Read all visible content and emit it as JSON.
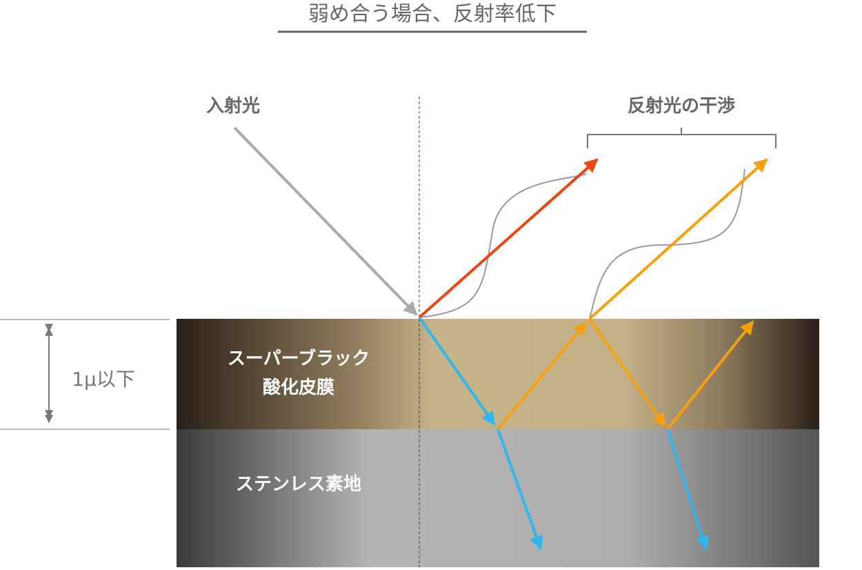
{
  "title": "弱め合う場合、反射率低下",
  "labels": {
    "incident": "入射光",
    "interference": "反射光の干渉",
    "thickness": "1μ以下",
    "film": [
      "スーパーブラック",
      "酸化皮膜"
    ],
    "substrate": "ステンレス素地"
  }
}
